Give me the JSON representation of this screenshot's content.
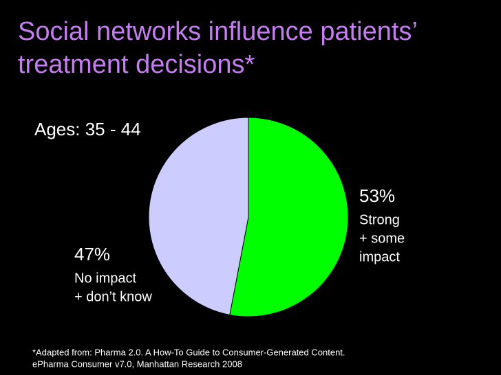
{
  "chart_data": {
    "type": "pie",
    "title": "Social networks influence patients’ treatment decisions*",
    "subtitle": "Ages: 35 - 44",
    "categories": [
      [
        "Strong",
        "+ some",
        "impact"
      ],
      [
        "No impact",
        "+ don’t know"
      ]
    ],
    "values": [
      53,
      47
    ],
    "value_labels": [
      "53%",
      "47%"
    ],
    "colors": [
      "#00ff00",
      "#ccccff"
    ],
    "footnote": [
      "*Adapted from: Pharma 2.0. A How-To Guide to Consumer-Generated Content.",
      "ePharma Consumer v7.0, Manhattan Research 2008"
    ]
  }
}
